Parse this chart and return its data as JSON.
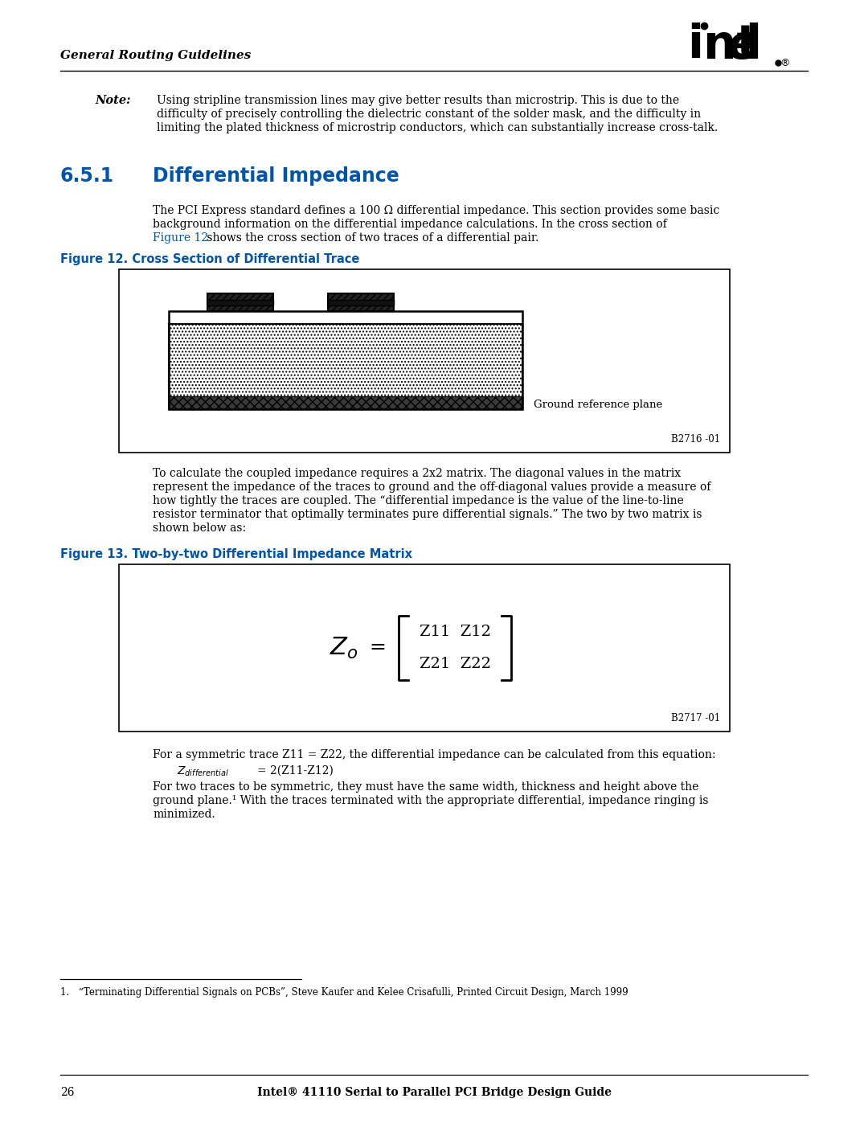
{
  "page_bg": "#ffffff",
  "header_text": "General Routing Guidelines",
  "blue_color": "#0055AA",
  "black_color": "#000000",
  "section_number": "6.5.1",
  "section_title": "Differential Impedance",
  "note_label": "Note:",
  "fig12_caption": "Figure 12. Cross Section of Differential Trace",
  "fig12_id": "B2716 -01",
  "ground_ref_label": "Ground reference plane",
  "fig13_caption": "Figure 13. Two-by-two Differential Impedance Matrix",
  "fig13_id": "B2717 -01",
  "body_text3": "For a symmetric trace Z11 = Z22, the differential impedance can be calculated from this equation:",
  "body_text4_line1": "For two traces to be symmetric, they must have the same width, thickness and height above the",
  "body_text4_line2": "ground plane.¹ With the traces terminated with the appropriate differential, impedance ringing is",
  "body_text4_line3": "minimized.",
  "page_number": "26",
  "footer_bold": "Intel® 41110 Serial to Parallel PCI Bridge Design Guide"
}
